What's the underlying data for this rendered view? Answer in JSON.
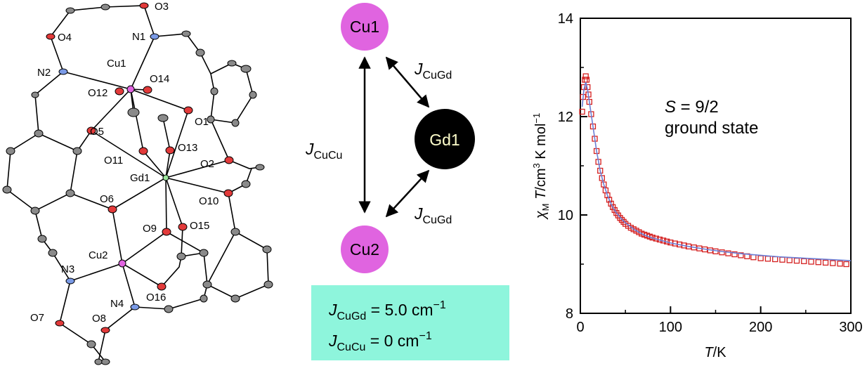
{
  "structure": {
    "atom_labels": [
      "O3",
      "O4",
      "N1",
      "N2",
      "Cu1",
      "O14",
      "O12",
      "O1",
      "O5",
      "O13",
      "O11",
      "O2",
      "Gd1",
      "O6",
      "O10",
      "O9",
      "O15",
      "Cu2",
      "N3",
      "O16",
      "N4",
      "O7",
      "O8"
    ]
  },
  "scheme": {
    "nodes": {
      "cu1": "Cu1",
      "gd1": "Gd1",
      "cu2": "Cu2"
    },
    "edge_cucu": {
      "J": "J",
      "sub": "CuCu"
    },
    "edge_cugd_top": {
      "J": "J",
      "sub": "CuGd"
    },
    "edge_cugd_bottom": {
      "J": "J",
      "sub": "CuGd"
    },
    "colors": {
      "cu": "#e064e0",
      "gd": "#000000",
      "box": "#8ef5dc"
    },
    "box": {
      "line1": {
        "J": "J",
        "sub": "CuGd",
        "rest": " = 5.0 cm",
        "sup": "−1"
      },
      "line2": {
        "J": "J",
        "sub": "CuCu",
        "rest": " = 0 cm",
        "sup": "−1"
      }
    }
  },
  "chart_data": {
    "type": "scatter",
    "title": "",
    "xlabel": {
      "main": "T",
      "rest": "/K"
    },
    "ylabel": {
      "chi": "χ",
      "chisub": "M",
      "T": " T",
      "rest": "/cm",
      "sup3": "3",
      "rest2": " K mol",
      "supm1": "−1"
    },
    "xlim": [
      0,
      300
    ],
    "ylim": [
      8,
      14
    ],
    "x_ticks": [
      0,
      100,
      200,
      300
    ],
    "y_ticks": [
      8,
      10,
      12,
      14
    ],
    "annotation": {
      "S": "S",
      "rest": " = 9/2",
      "line2": "ground state"
    },
    "series": [
      {
        "marker": "open-square",
        "color": "#d42020",
        "x": [
          2,
          3,
          4,
          5,
          6,
          7,
          8,
          9,
          10,
          12,
          14,
          16,
          18,
          20,
          22,
          24,
          26,
          28,
          30,
          32,
          34,
          36,
          38,
          40,
          42,
          44,
          46,
          48,
          50,
          53,
          56,
          59,
          62,
          65,
          68,
          71,
          74,
          77,
          80,
          84,
          88,
          92,
          96,
          100,
          105,
          110,
          115,
          120,
          126,
          132,
          138,
          144,
          150,
          157,
          164,
          171,
          178,
          185,
          192,
          200,
          208,
          216,
          224,
          232,
          240,
          248,
          256,
          264,
          272,
          280,
          288,
          295
        ],
        "y": [
          12.1,
          12.4,
          12.6,
          12.75,
          12.82,
          12.75,
          12.6,
          12.45,
          12.3,
          12.05,
          11.8,
          11.55,
          11.3,
          11.08,
          10.9,
          10.75,
          10.62,
          10.5,
          10.4,
          10.31,
          10.23,
          10.16,
          10.1,
          10.04,
          9.99,
          9.94,
          9.9,
          9.86,
          9.82,
          9.78,
          9.74,
          9.71,
          9.68,
          9.65,
          9.62,
          9.6,
          9.58,
          9.56,
          9.54,
          9.52,
          9.5,
          9.48,
          9.46,
          9.44,
          9.42,
          9.4,
          9.38,
          9.36,
          9.34,
          9.32,
          9.3,
          9.28,
          9.26,
          9.24,
          9.22,
          9.2,
          9.18,
          9.16,
          9.14,
          9.12,
          9.11,
          9.1,
          9.09,
          9.08,
          9.07,
          9.06,
          9.05,
          9.04,
          9.03,
          9.02,
          9.01,
          9.0
        ]
      },
      {
        "type": "line",
        "color": "#6b7fd6",
        "x": [
          2,
          4,
          6,
          8,
          10,
          14,
          18,
          22,
          26,
          30,
          35,
          40,
          45,
          50,
          60,
          70,
          80,
          90,
          100,
          120,
          140,
          160,
          180,
          200,
          220,
          240,
          260,
          280,
          300
        ],
        "y": [
          12.2,
          12.55,
          12.7,
          12.55,
          12.3,
          11.8,
          11.3,
          10.9,
          10.62,
          10.4,
          10.19,
          10.04,
          9.93,
          9.84,
          9.7,
          9.6,
          9.53,
          9.48,
          9.43,
          9.36,
          9.3,
          9.25,
          9.21,
          9.18,
          9.15,
          9.13,
          9.11,
          9.09,
          9.07
        ]
      }
    ]
  }
}
